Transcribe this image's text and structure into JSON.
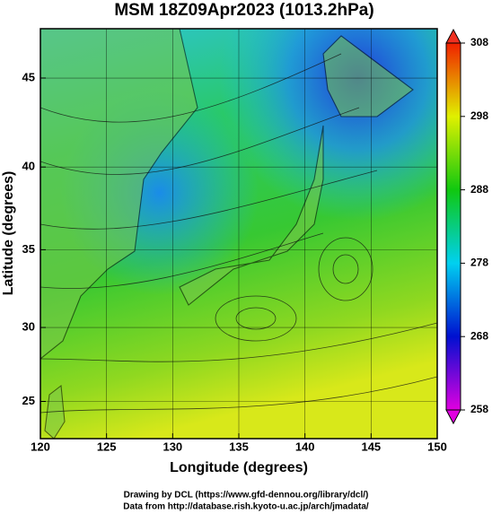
{
  "title": "MSM 18Z09Apr2023 (1013.2hPa)",
  "x_axis": {
    "label": "Longitude (degrees)",
    "lim": [
      120,
      150
    ],
    "ticks": [
      120,
      125,
      130,
      135,
      140,
      145,
      150
    ]
  },
  "y_axis": {
    "label": "Latitude  (degrees)",
    "lim": [
      22.4,
      47.6
    ],
    "ticks": [
      25,
      30,
      35,
      40,
      45
    ],
    "projection": "mercator"
  },
  "colorbar": {
    "lim": [
      258,
      308
    ],
    "ticks": [
      258,
      268,
      278,
      288,
      298,
      308
    ]
  },
  "credits": [
    "Drawing by DCL (https://www.gfd-dennou.org/library/dcl/)",
    "Data from http://database.rish.kyoto-u.ac.jp/arch/jmadata/"
  ]
}
